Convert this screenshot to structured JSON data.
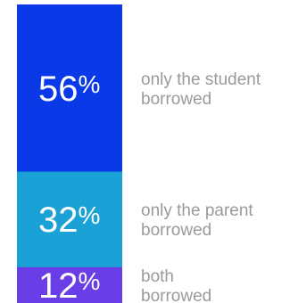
{
  "chart_data": {
    "type": "bar",
    "stacked": true,
    "orientation": "vertical",
    "unit": "%",
    "categories": [
      "only the student borrowed",
      "only the parent borrowed",
      "both borrowed"
    ],
    "values": [
      56,
      32,
      12
    ],
    "segments": [
      {
        "value": 56,
        "value_text": "56",
        "label_lines": [
          "only the student",
          "borrowed"
        ],
        "color": "#0a3ae8"
      },
      {
        "value": 32,
        "value_text": "32",
        "label_lines": [
          "only the parent",
          "borrowed"
        ],
        "color": "#1aa1d6"
      },
      {
        "value": 12,
        "value_text": "12",
        "label_lines": [
          "both",
          "borrowed"
        ],
        "color": "#6a3ee6"
      }
    ]
  }
}
